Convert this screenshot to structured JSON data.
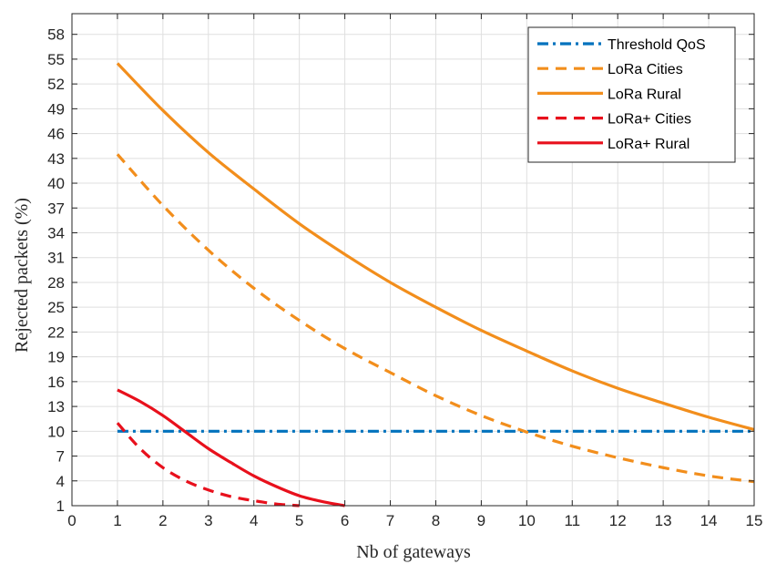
{
  "chart_data": {
    "type": "line",
    "title": "",
    "xlabel": "Nb of gateways",
    "ylabel": "Rejected packets (%)",
    "xlim": [
      0,
      15
    ],
    "ylim": [
      1,
      60.5
    ],
    "xticks": [
      "0",
      "1",
      "2",
      "3",
      "4",
      "5",
      "6",
      "7",
      "8",
      "9",
      "10",
      "11",
      "12",
      "13",
      "14",
      "15"
    ],
    "yticks": [
      "1",
      "4",
      "7",
      "10",
      "13",
      "16",
      "19",
      "22",
      "25",
      "28",
      "31",
      "34",
      "37",
      "40",
      "43",
      "46",
      "49",
      "52",
      "55",
      "58"
    ],
    "grid": true,
    "legend_position": "top-right",
    "series": [
      {
        "name": "Threshold QoS",
        "color": "#0072BD",
        "style": "dashdot",
        "x": [
          1,
          15
        ],
        "y": [
          10,
          10
        ]
      },
      {
        "name": "LoRa Cities",
        "color": "#F28E1C",
        "style": "dashed",
        "x": [
          1,
          2,
          3,
          4,
          5,
          6,
          7,
          8,
          9,
          10,
          11,
          12,
          13,
          14,
          15
        ],
        "y": [
          43.5,
          37.3,
          31.9,
          27.3,
          23.4,
          20.0,
          17.1,
          14.3,
          11.9,
          9.9,
          8.2,
          6.8,
          5.6,
          4.6,
          3.9
        ]
      },
      {
        "name": "LoRa Rural",
        "color": "#F28E1C",
        "style": "solid",
        "x": [
          1,
          2,
          3,
          4,
          5,
          6,
          7,
          8,
          9,
          10,
          11,
          12,
          13,
          14,
          15
        ],
        "y": [
          54.5,
          48.8,
          43.7,
          39.3,
          35.1,
          31.4,
          28.0,
          25.0,
          22.2,
          19.7,
          17.3,
          15.2,
          13.4,
          11.7,
          10.2
        ]
      },
      {
        "name": "LoRa+ Cities",
        "color": "#E8101C",
        "style": "dashed",
        "x": [
          1,
          1.5,
          2,
          2.5,
          3,
          3.5,
          4,
          4.5,
          5
        ],
        "y": [
          11.0,
          7.9,
          5.6,
          4.0,
          2.9,
          2.1,
          1.6,
          1.2,
          1.0
        ]
      },
      {
        "name": "LoRa+ Rural",
        "color": "#E8101C",
        "style": "solid",
        "x": [
          1,
          1.5,
          2,
          2.5,
          3,
          3.5,
          4,
          4.5,
          5,
          5.5,
          6
        ],
        "y": [
          15.0,
          13.6,
          11.9,
          9.9,
          7.9,
          6.2,
          4.6,
          3.3,
          2.2,
          1.5,
          1.0
        ]
      }
    ]
  }
}
